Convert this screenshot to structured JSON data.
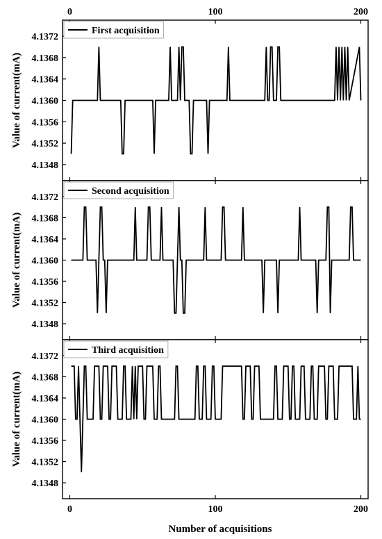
{
  "chart_data": {
    "type": "line",
    "layout": "three stacked panels sharing x axis",
    "xlabel": "Number of acquisitions",
    "xlim": [
      -5,
      205
    ],
    "x_ticks": [
      0,
      100,
      200
    ],
    "ylim": [
      4.1345,
      4.1375
    ],
    "y_ticks": [
      4.1348,
      4.1352,
      4.1356,
      4.136,
      4.1364,
      4.1368,
      4.1372
    ],
    "y_tick_labels": [
      "4.1348",
      "4.1352",
      "4.1356",
      "4.1360",
      "4.1364",
      "4.1368",
      "4.1372"
    ],
    "x_tick_labels": [
      "0",
      "100",
      "200"
    ],
    "line_color": "#000000",
    "legend_placement": "top-left",
    "panels": [
      {
        "ylabel": "Value of current(mA)",
        "series": [
          {
            "name": "First acquisition",
            "x": [
              1,
              2,
              19,
              20,
              21,
              22,
              35,
              36,
              37,
              38,
              57,
              58,
              59,
              60,
              68,
              69,
              70,
              71,
              74,
              75,
              76,
              77,
              78,
              79,
              82,
              83,
              84,
              85,
              94,
              95,
              96,
              97,
              108,
              109,
              110,
              111,
              134,
              135,
              136,
              137,
              138,
              139,
              140,
              141,
              142,
              143,
              144,
              145,
              146,
              147,
              182,
              183,
              184,
              185,
              186,
              187,
              188,
              189,
              190,
              191,
              192,
              199,
              200
            ],
            "y": [
              4.135,
              4.136,
              4.136,
              4.137,
              4.136,
              4.136,
              4.136,
              4.135,
              4.135,
              4.136,
              4.136,
              4.135,
              4.136,
              4.136,
              4.136,
              4.137,
              4.136,
              4.136,
              4.136,
              4.137,
              4.136,
              4.137,
              4.137,
              4.136,
              4.136,
              4.135,
              4.135,
              4.136,
              4.136,
              4.135,
              4.136,
              4.136,
              4.136,
              4.137,
              4.136,
              4.136,
              4.136,
              4.137,
              4.136,
              4.136,
              4.137,
              4.137,
              4.136,
              4.136,
              4.136,
              4.137,
              4.137,
              4.136,
              4.136,
              4.136,
              4.136,
              4.137,
              4.136,
              4.137,
              4.136,
              4.137,
              4.136,
              4.137,
              4.136,
              4.137,
              4.136,
              4.137,
              4.136
            ]
          }
        ]
      },
      {
        "ylabel": "Value of current(mA)",
        "series": [
          {
            "name": "Second acquisition",
            "x": [
              1,
              9,
              10,
              11,
              12,
              13,
              18,
              19,
              20,
              21,
              22,
              23,
              24,
              25,
              26,
              27,
              44,
              45,
              46,
              47,
              53,
              54,
              55,
              56,
              62,
              63,
              64,
              65,
              71,
              72,
              73,
              74,
              75,
              76,
              77,
              78,
              79,
              80,
              92,
              93,
              94,
              95,
              104,
              105,
              106,
              107,
              118,
              119,
              120,
              121,
              132,
              133,
              134,
              135,
              142,
              143,
              144,
              145,
              157,
              158,
              159,
              160,
              169,
              170,
              171,
              172,
              176,
              177,
              178,
              179,
              180,
              181,
              192,
              193,
              194,
              195,
              196,
              200
            ],
            "y": [
              4.136,
              4.136,
              4.137,
              4.137,
              4.136,
              4.136,
              4.136,
              4.135,
              4.136,
              4.137,
              4.137,
              4.136,
              4.136,
              4.135,
              4.136,
              4.136,
              4.136,
              4.137,
              4.136,
              4.136,
              4.136,
              4.137,
              4.137,
              4.136,
              4.136,
              4.137,
              4.136,
              4.136,
              4.136,
              4.135,
              4.135,
              4.136,
              4.137,
              4.136,
              4.136,
              4.135,
              4.135,
              4.136,
              4.136,
              4.137,
              4.136,
              4.136,
              4.136,
              4.137,
              4.137,
              4.136,
              4.136,
              4.137,
              4.136,
              4.136,
              4.136,
              4.135,
              4.136,
              4.136,
              4.136,
              4.135,
              4.136,
              4.136,
              4.136,
              4.137,
              4.136,
              4.136,
              4.136,
              4.135,
              4.136,
              4.136,
              4.136,
              4.137,
              4.137,
              4.135,
              4.136,
              4.136,
              4.136,
              4.137,
              4.137,
              4.136,
              4.136,
              4.136
            ]
          }
        ]
      },
      {
        "ylabel": "Value of current(mA)",
        "series": [
          {
            "name": "Third acquisition",
            "x": [
              1,
              3,
              4,
              5,
              6,
              7,
              8,
              9,
              10,
              11,
              12,
              16,
              17,
              20,
              21,
              22,
              23,
              26,
              27,
              28,
              29,
              32,
              33,
              36,
              37,
              38,
              39,
              42,
              43,
              44,
              45,
              46,
              47,
              50,
              51,
              52,
              53,
              57,
              58,
              60,
              61,
              62,
              63,
              72,
              73,
              74,
              75,
              86,
              87,
              88,
              89,
              91,
              92,
              93,
              94,
              97,
              98,
              99,
              100,
              104,
              105,
              118,
              119,
              120,
              121,
              124,
              125,
              126,
              127,
              130,
              131,
              140,
              141,
              142,
              143,
              146,
              147,
              150,
              151,
              152,
              153,
              154,
              155,
              158,
              159,
              161,
              162,
              165,
              166,
              167,
              168,
              170,
              171,
              175,
              176,
              177,
              178,
              181,
              182,
              184,
              185,
              194,
              195,
              197,
              198,
              199,
              200
            ],
            "y": [
              4.137,
              4.137,
              4.136,
              4.136,
              4.137,
              4.136,
              4.135,
              4.136,
              4.137,
              4.137,
              4.136,
              4.136,
              4.137,
              4.137,
              4.136,
              4.136,
              4.137,
              4.137,
              4.136,
              4.136,
              4.137,
              4.137,
              4.136,
              4.136,
              4.137,
              4.137,
              4.136,
              4.136,
              4.137,
              4.136,
              4.137,
              4.136,
              4.137,
              4.137,
              4.136,
              4.136,
              4.137,
              4.137,
              4.136,
              4.136,
              4.137,
              4.137,
              4.136,
              4.136,
              4.137,
              4.137,
              4.136,
              4.136,
              4.137,
              4.137,
              4.136,
              4.136,
              4.137,
              4.137,
              4.136,
              4.136,
              4.137,
              4.137,
              4.136,
              4.136,
              4.137,
              4.137,
              4.136,
              4.136,
              4.137,
              4.137,
              4.136,
              4.136,
              4.137,
              4.137,
              4.136,
              4.136,
              4.137,
              4.137,
              4.136,
              4.136,
              4.137,
              4.137,
              4.136,
              4.136,
              4.137,
              4.137,
              4.136,
              4.136,
              4.137,
              4.137,
              4.136,
              4.136,
              4.137,
              4.137,
              4.136,
              4.136,
              4.137,
              4.137,
              4.136,
              4.136,
              4.137,
              4.137,
              4.136,
              4.136,
              4.137,
              4.137,
              4.136,
              4.136,
              4.137,
              4.136,
              4.136
            ]
          }
        ]
      }
    ]
  }
}
